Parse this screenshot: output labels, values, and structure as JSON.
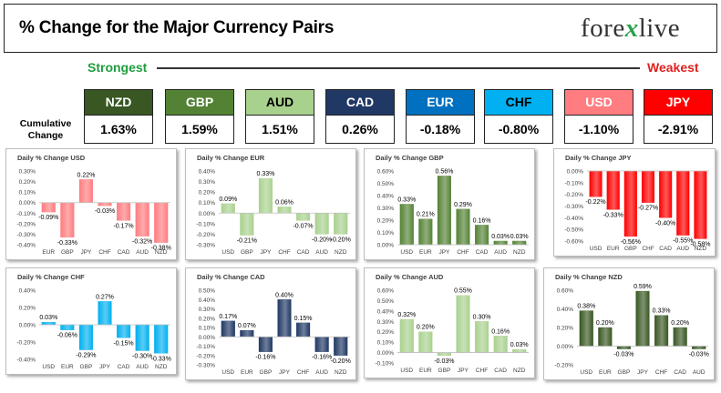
{
  "header": {
    "title": "% Change for the Major Currency Pairs",
    "logo_left": "fore",
    "logo_x": "x",
    "logo_right": "live"
  },
  "strength": {
    "strongest_label": "Strongest",
    "weakest_label": "Weakest",
    "cumulative_label_line1": "Cumulative",
    "cumulative_label_line2": "Change",
    "tiles": [
      {
        "currency": "NZD",
        "value": "1.63%",
        "bg": "#385723",
        "fg": "#ffffff"
      },
      {
        "currency": "GBP",
        "value": "1.59%",
        "bg": "#548235",
        "fg": "#ffffff"
      },
      {
        "currency": "AUD",
        "value": "1.51%",
        "bg": "#a9d18e",
        "fg": "#000000"
      },
      {
        "currency": "CAD",
        "value": "0.26%",
        "bg": "#203864",
        "fg": "#ffffff"
      },
      {
        "currency": "EUR",
        "value": "-0.18%",
        "bg": "#0070c0",
        "fg": "#ffffff"
      },
      {
        "currency": "CHF",
        "value": "-0.80%",
        "bg": "#00b0f0",
        "fg": "#000000"
      },
      {
        "currency": "USD",
        "value": "-1.10%",
        "bg": "#ff7c80",
        "fg": "#ffffff"
      },
      {
        "currency": "JPY",
        "value": "-2.91%",
        "bg": "#ff0000",
        "fg": "#ffffff"
      }
    ]
  },
  "chart_data": [
    {
      "type": "bar",
      "title": "Daily % Change USD",
      "color": "#ff7c80",
      "categories": [
        "EUR",
        "GBP",
        "JPY",
        "CHF",
        "CAD",
        "AUD",
        "NZD"
      ],
      "values": [
        -0.09,
        -0.33,
        0.22,
        -0.03,
        -0.17,
        -0.32,
        -0.38
      ],
      "labels": [
        "-0.09%",
        "-0.33%",
        "0.22%",
        "-0.03%",
        "-0.17%",
        "-0.32%",
        "-0.38%"
      ],
      "yticks": [
        "0.30%",
        "0.20%",
        "0.10%",
        "0.00%",
        "-0.10%",
        "-0.20%",
        "-0.30%",
        "-0.40%"
      ],
      "ylim": [
        -0.4,
        0.3
      ]
    },
    {
      "type": "bar",
      "title": "Daily % Change EUR",
      "color": "#a9d18e",
      "categories": [
        "USD",
        "GBP",
        "JPY",
        "CHF",
        "CAD",
        "AUD",
        "NZD"
      ],
      "values": [
        0.09,
        -0.21,
        0.33,
        0.06,
        -0.07,
        -0.2,
        -0.2
      ],
      "labels": [
        "0.09%",
        "-0.21%",
        "0.33%",
        "0.06%",
        "-0.07%",
        "-0.20%",
        "-0.20%"
      ],
      "yticks": [
        "0.40%",
        "0.30%",
        "0.20%",
        "0.10%",
        "0.00%",
        "-0.10%",
        "-0.20%",
        "-0.30%"
      ],
      "ylim": [
        -0.3,
        0.4
      ]
    },
    {
      "type": "bar",
      "title": "Daily % Change GBP",
      "color": "#548235",
      "categories": [
        "USD",
        "EUR",
        "JPY",
        "CHF",
        "CAD",
        "AUD",
        "NZD"
      ],
      "values": [
        0.33,
        0.21,
        0.56,
        0.29,
        0.16,
        0.03,
        0.03
      ],
      "labels": [
        "0.33%",
        "0.21%",
        "0.56%",
        "0.29%",
        "0.16%",
        "0.03%",
        "0.03%"
      ],
      "yticks": [
        "0.60%",
        "0.50%",
        "0.40%",
        "0.30%",
        "0.20%",
        "0.10%",
        "0.00%"
      ],
      "ylim": [
        0,
        0.6
      ]
    },
    {
      "type": "bar",
      "title": "Daily % Change JPY",
      "color": "#ff0000",
      "categories": [
        "USD",
        "EUR",
        "GBP",
        "CHF",
        "CAD",
        "AUD",
        "NZD"
      ],
      "values": [
        -0.22,
        -0.33,
        -0.56,
        -0.27,
        -0.4,
        -0.55,
        -0.58
      ],
      "labels": [
        "-0.22%",
        "-0.33%",
        "-0.56%",
        "-0.27%",
        "-0.40%",
        "-0.55%",
        "-0.58%"
      ],
      "yticks": [
        "0.00%",
        "-0.10%",
        "-0.20%",
        "-0.30%",
        "-0.40%",
        "-0.50%",
        "-0.60%"
      ],
      "ylim": [
        -0.6,
        0
      ]
    },
    {
      "type": "bar",
      "title": "Daily % Change CHF",
      "color": "#00b0f0",
      "categories": [
        "USD",
        "EUR",
        "GBP",
        "JPY",
        "CAD",
        "AUD",
        "NZD"
      ],
      "values": [
        0.03,
        -0.06,
        -0.29,
        0.27,
        -0.15,
        -0.3,
        -0.33
      ],
      "labels": [
        "0.03%",
        "-0.06%",
        "-0.29%",
        "0.27%",
        "-0.15%",
        "-0.30%",
        "-0.33%"
      ],
      "yticks": [
        "0.40%",
        "0.20%",
        "0.00%",
        "-0.20%",
        "-0.40%"
      ],
      "ylim": [
        -0.4,
        0.4
      ]
    },
    {
      "type": "bar",
      "title": "Daily % Change CAD",
      "color": "#203864",
      "categories": [
        "USD",
        "EUR",
        "GBP",
        "JPY",
        "CHF",
        "AUD",
        "NZD"
      ],
      "values": [
        0.17,
        0.07,
        -0.16,
        0.4,
        0.15,
        -0.16,
        -0.2
      ],
      "labels": [
        "0.17%",
        "0.07%",
        "-0.16%",
        "0.40%",
        "0.15%",
        "-0.16%",
        "-0.20%"
      ],
      "yticks": [
        "0.50%",
        "0.40%",
        "0.30%",
        "0.20%",
        "0.10%",
        "0.00%",
        "-0.10%",
        "-0.20%",
        "-0.30%"
      ],
      "ylim": [
        -0.3,
        0.5
      ]
    },
    {
      "type": "bar",
      "title": "Daily % Change AUD",
      "color": "#a9d18e",
      "categories": [
        "USD",
        "EUR",
        "GBP",
        "JPY",
        "CHF",
        "CAD",
        "NZD"
      ],
      "values": [
        0.32,
        0.2,
        -0.03,
        0.55,
        0.3,
        0.16,
        0.03
      ],
      "labels": [
        "0.32%",
        "0.20%",
        "-0.03%",
        "0.55%",
        "0.30%",
        "0.16%",
        "0.03%"
      ],
      "yticks": [
        "0.60%",
        "0.50%",
        "0.40%",
        "0.30%",
        "0.20%",
        "0.10%",
        "0.00%",
        "-0.10%"
      ],
      "ylim": [
        -0.1,
        0.6
      ]
    },
    {
      "type": "bar",
      "title": "Daily % Change NZD",
      "color": "#385723",
      "categories": [
        "USD",
        "EUR",
        "GBP",
        "JPY",
        "CHF",
        "CAD",
        "AUD"
      ],
      "values": [
        0.38,
        0.2,
        -0.03,
        0.59,
        0.33,
        0.2,
        -0.03
      ],
      "labels": [
        "0.38%",
        "0.20%",
        "-0.03%",
        "0.59%",
        "0.33%",
        "0.20%",
        "-0.03%"
      ],
      "yticks": [
        "0.60%",
        "0.40%",
        "0.20%",
        "0.00%",
        "-0.20%"
      ],
      "ylim": [
        -0.2,
        0.6
      ]
    }
  ]
}
